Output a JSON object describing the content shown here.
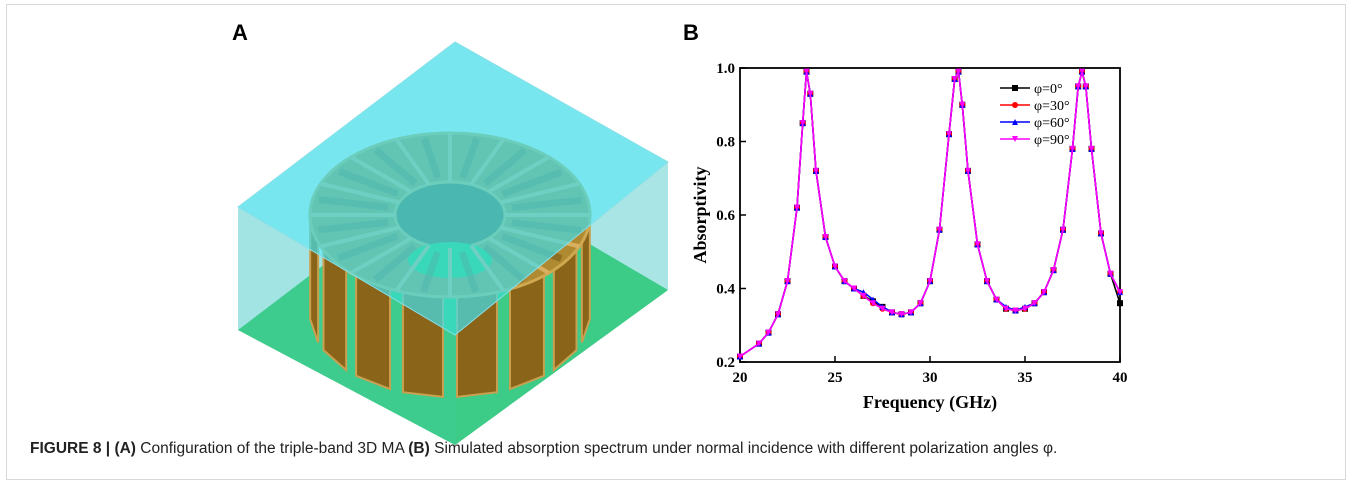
{
  "panel_a": {
    "label": "A"
  },
  "chart_data": {
    "type": "line",
    "panel_label": "B",
    "xlabel": "Frequency (GHz)",
    "ylabel": "Absorptivity",
    "xlim": [
      20,
      40
    ],
    "ylim": [
      0.2,
      1.0
    ],
    "xticks": [
      20,
      25,
      30,
      35,
      40
    ],
    "yticks": [
      0.2,
      0.4,
      0.6,
      0.8,
      {
        "value": 1,
        "label": "1.0"
      }
    ],
    "x": [
      20,
      21,
      21.5,
      22,
      22.5,
      23,
      23.3,
      23.5,
      23.7,
      24,
      24.5,
      25,
      25.5,
      26,
      26.5,
      27,
      27.5,
      28,
      28.5,
      29,
      29.5,
      30,
      30.5,
      31,
      31.3,
      31.5,
      31.7,
      32,
      32.5,
      33,
      33.5,
      34,
      34.5,
      35,
      35.5,
      36,
      36.5,
      37,
      37.5,
      37.8,
      38,
      38.2,
      38.5,
      39,
      39.5,
      40
    ],
    "legend": "upper right",
    "series": [
      {
        "name": "φ=0°",
        "color": "#000000",
        "marker": "square",
        "values": [
          0.215,
          0.25,
          0.28,
          0.33,
          0.42,
          0.62,
          0.85,
          0.99,
          0.93,
          0.72,
          0.54,
          0.46,
          0.42,
          0.4,
          0.38,
          0.365,
          0.35,
          0.335,
          0.33,
          0.335,
          0.36,
          0.42,
          0.56,
          0.82,
          0.97,
          0.99,
          0.9,
          0.72,
          0.52,
          0.42,
          0.37,
          0.345,
          0.34,
          0.345,
          0.36,
          0.39,
          0.45,
          0.56,
          0.78,
          0.95,
          0.99,
          0.95,
          0.78,
          0.55,
          0.44,
          0.36
        ]
      },
      {
        "name": "φ=30°",
        "color": "#ff0000",
        "marker": "circle",
        "values": [
          0.215,
          0.25,
          0.28,
          0.33,
          0.42,
          0.62,
          0.85,
          0.99,
          0.93,
          0.72,
          0.54,
          0.46,
          0.42,
          0.4,
          0.38,
          0.36,
          0.345,
          0.335,
          0.33,
          0.335,
          0.36,
          0.42,
          0.56,
          0.82,
          0.97,
          0.99,
          0.9,
          0.72,
          0.52,
          0.42,
          0.37,
          0.345,
          0.34,
          0.345,
          0.36,
          0.39,
          0.45,
          0.56,
          0.78,
          0.95,
          0.99,
          0.95,
          0.78,
          0.55,
          0.44,
          0.39
        ]
      },
      {
        "name": "φ=60°",
        "color": "#0000ff",
        "marker": "triangle-up",
        "values": [
          0.215,
          0.25,
          0.28,
          0.33,
          0.42,
          0.62,
          0.85,
          0.99,
          0.93,
          0.72,
          0.54,
          0.46,
          0.42,
          0.4,
          0.39,
          0.37,
          0.35,
          0.335,
          0.33,
          0.335,
          0.36,
          0.42,
          0.56,
          0.82,
          0.97,
          0.99,
          0.9,
          0.72,
          0.52,
          0.42,
          0.37,
          0.35,
          0.34,
          0.35,
          0.36,
          0.39,
          0.45,
          0.56,
          0.78,
          0.95,
          0.99,
          0.95,
          0.78,
          0.55,
          0.44,
          0.39
        ]
      },
      {
        "name": "φ=90°",
        "color": "#ff00ff",
        "marker": "triangle-down",
        "values": [
          0.215,
          0.25,
          0.28,
          0.33,
          0.42,
          0.62,
          0.85,
          0.99,
          0.93,
          0.72,
          0.54,
          0.46,
          0.42,
          0.4,
          0.38,
          0.36,
          0.345,
          0.335,
          0.33,
          0.335,
          0.36,
          0.42,
          0.56,
          0.82,
          0.97,
          0.99,
          0.9,
          0.72,
          0.52,
          0.42,
          0.37,
          0.345,
          0.34,
          0.345,
          0.36,
          0.39,
          0.45,
          0.56,
          0.78,
          0.95,
          0.99,
          0.95,
          0.78,
          0.55,
          0.44,
          0.39
        ]
      }
    ]
  },
  "caption": {
    "label": "FIGURE 8 |",
    "a": "(A)",
    "a_text": "Configuration of the triple-band 3D MA",
    "b": "(B)",
    "b_text": "Simulated absorption spectrum under normal incidence with different polarization angles φ."
  }
}
